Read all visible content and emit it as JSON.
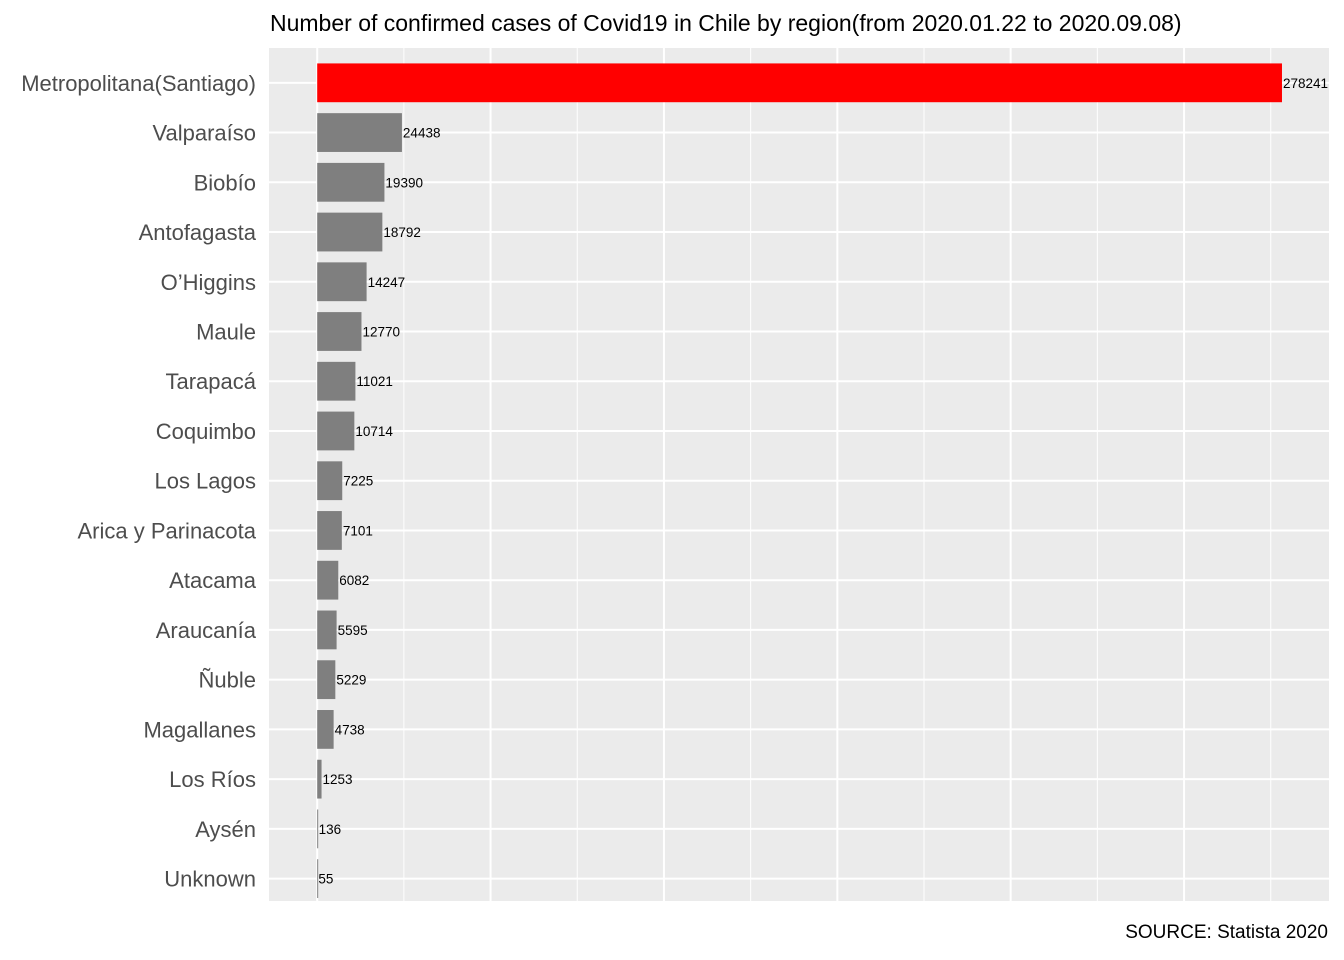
{
  "chart_data": {
    "type": "bar",
    "orientation": "horizontal",
    "title": "Number of confirmed cases of Covid19 in Chile by region(from 2020.01.22 to 2020.09.08)",
    "caption": "SOURCE: Statista 2020",
    "xlabel": "",
    "ylabel": "",
    "xlim": [
      -13900,
      291800
    ],
    "grid": true,
    "legend": "none",
    "categories": [
      "Metropolitana(Santiago)",
      "Valparaíso",
      "Biobío",
      "Antofagasta",
      "O’Higgins",
      "Maule",
      "Tarapacá",
      "Coquimbo",
      "Los Lagos",
      "Arica y Parinacota",
      "Atacama",
      "Araucanía",
      "Ñuble",
      "Magallanes",
      "Los Ríos",
      "Aysén",
      "Unknown"
    ],
    "values": [
      278241,
      24438,
      19390,
      18792,
      14247,
      12770,
      11021,
      10714,
      7225,
      7101,
      6082,
      5595,
      5229,
      4738,
      1253,
      136,
      55
    ],
    "colors": {
      "highlight": "#ff0000",
      "bar": "#7f7f7f",
      "panel": "#ebebeb",
      "grid": "#ffffff"
    }
  }
}
